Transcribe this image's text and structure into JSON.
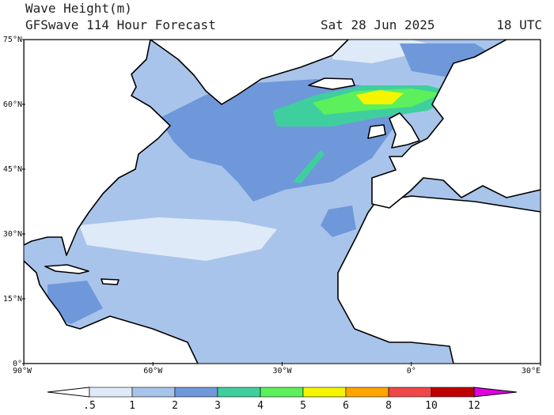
{
  "header": {
    "title": "Wave Height(m)",
    "model": "GFSwave 114 Hour Forecast",
    "date": "Sat 28 Jun 2025",
    "time": "18 UTC"
  },
  "map": {
    "lat_labels": [
      "75°N",
      "60°N",
      "45°N",
      "30°N",
      "15°N",
      "0°"
    ],
    "lon_labels": [
      "90°W",
      "60°W",
      "30°W",
      "0°",
      "30°E"
    ]
  },
  "colorbar": {
    "labels": [
      ".5",
      "1",
      "2",
      "3",
      "4",
      "5",
      "6",
      "8",
      "10",
      "12"
    ],
    "colors": [
      "#ffffff",
      "#dfeaf8",
      "#a9c4ea",
      "#6f98db",
      "#3fcf9e",
      "#5cf05c",
      "#f5f500",
      "#ffa500",
      "#f04848",
      "#c00000",
      "#e000e0"
    ]
  }
}
